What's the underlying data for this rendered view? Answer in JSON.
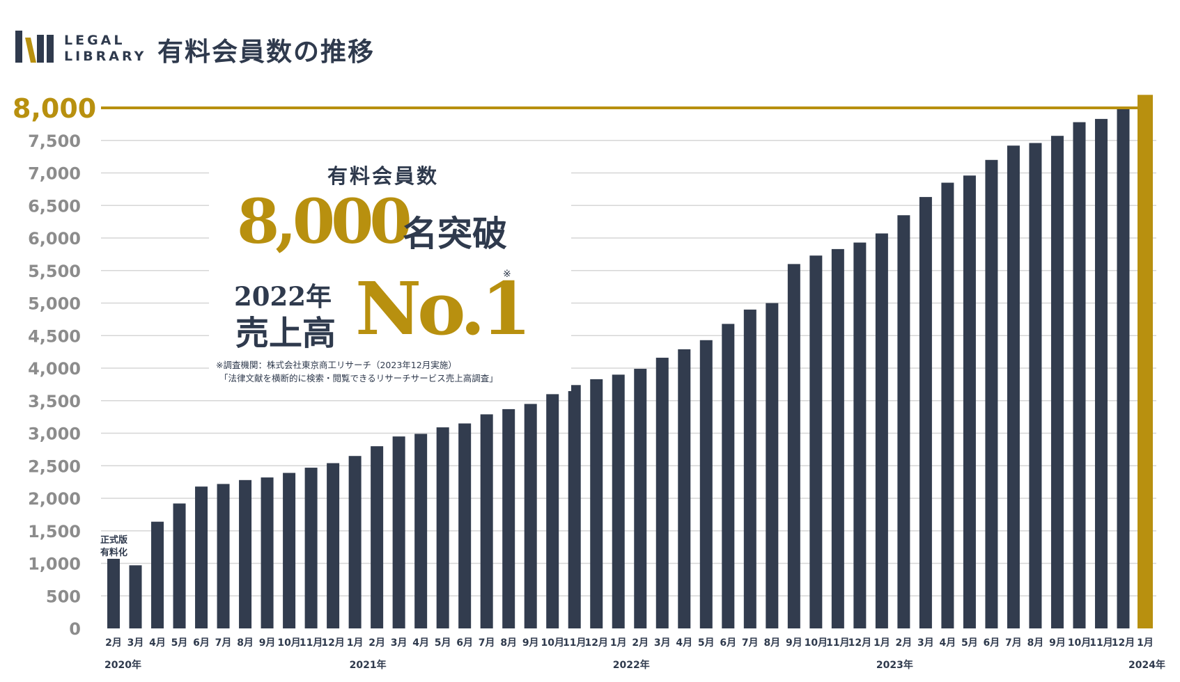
{
  "header": {
    "logo_line1": "LEGAL",
    "logo_line2": "LIBRARY",
    "title": "有料会員数の推移"
  },
  "colors": {
    "bar": "#323c4e",
    "accent": "#b8900f",
    "grid": "#d6d6d6",
    "text": "#2f3a4d",
    "tick": "#8c8c8c"
  },
  "callout": {
    "label": "有料会員数",
    "big_number": "8,000",
    "suffix": "名突破",
    "year": "2022年",
    "sales": "売上高",
    "rank": "No.1",
    "mark": "※",
    "note_line1": "※調査機関：株式会社東京商工リサーチ（2023年12月実施）",
    "note_line2": "「法律文献を横断的に検索・閲覧できるリサーチサービス売上高調査」"
  },
  "annotation": {
    "line1": "正式版",
    "line2": "有料化"
  },
  "chart_data": {
    "type": "bar",
    "ylim": [
      0,
      8000
    ],
    "y_ticks": [
      "0",
      "500",
      "1,000",
      "1,500",
      "2,000",
      "2,500",
      "3,000",
      "3,500",
      "4,000",
      "4,500",
      "5,000",
      "5,500",
      "6,000",
      "6,500",
      "7,000",
      "7,500",
      "8,000"
    ],
    "grid": true,
    "categories": [
      "2月",
      "3月",
      "4月",
      "5月",
      "6月",
      "7月",
      "8月",
      "9月",
      "10月",
      "11月",
      "12月",
      "1月",
      "2月",
      "3月",
      "4月",
      "5月",
      "6月",
      "7月",
      "8月",
      "9月",
      "10月",
      "11月",
      "12月",
      "1月",
      "2月",
      "3月",
      "4月",
      "5月",
      "6月",
      "7月",
      "8月",
      "9月",
      "10月",
      "11月",
      "12月",
      "1月",
      "2月",
      "3月",
      "4月",
      "5月",
      "6月",
      "7月",
      "8月",
      "9月",
      "10月",
      "11月",
      "12月",
      "1月"
    ],
    "values": [
      1070,
      970,
      1640,
      1920,
      2180,
      2220,
      2280,
      2320,
      2390,
      2470,
      2540,
      2650,
      2800,
      2950,
      2990,
      3090,
      3150,
      3290,
      3370,
      3450,
      3600,
      3740,
      3830,
      3900,
      3990,
      4160,
      4290,
      4430,
      4680,
      4900,
      5000,
      5600,
      5730,
      5830,
      5930,
      6070,
      6350,
      6630,
      6850,
      6960,
      7200,
      7420,
      7460,
      7570,
      7780,
      7830,
      7980,
      8200
    ],
    "highlight_last": true,
    "years": [
      {
        "label": "2020年",
        "index": 0
      },
      {
        "label": "2021年",
        "index": 11
      },
      {
        "label": "2022年",
        "index": 23
      },
      {
        "label": "2023年",
        "index": 35
      },
      {
        "label": "2024年",
        "index": 47
      }
    ],
    "target_line": {
      "value": 8000,
      "label": "8,000"
    }
  }
}
